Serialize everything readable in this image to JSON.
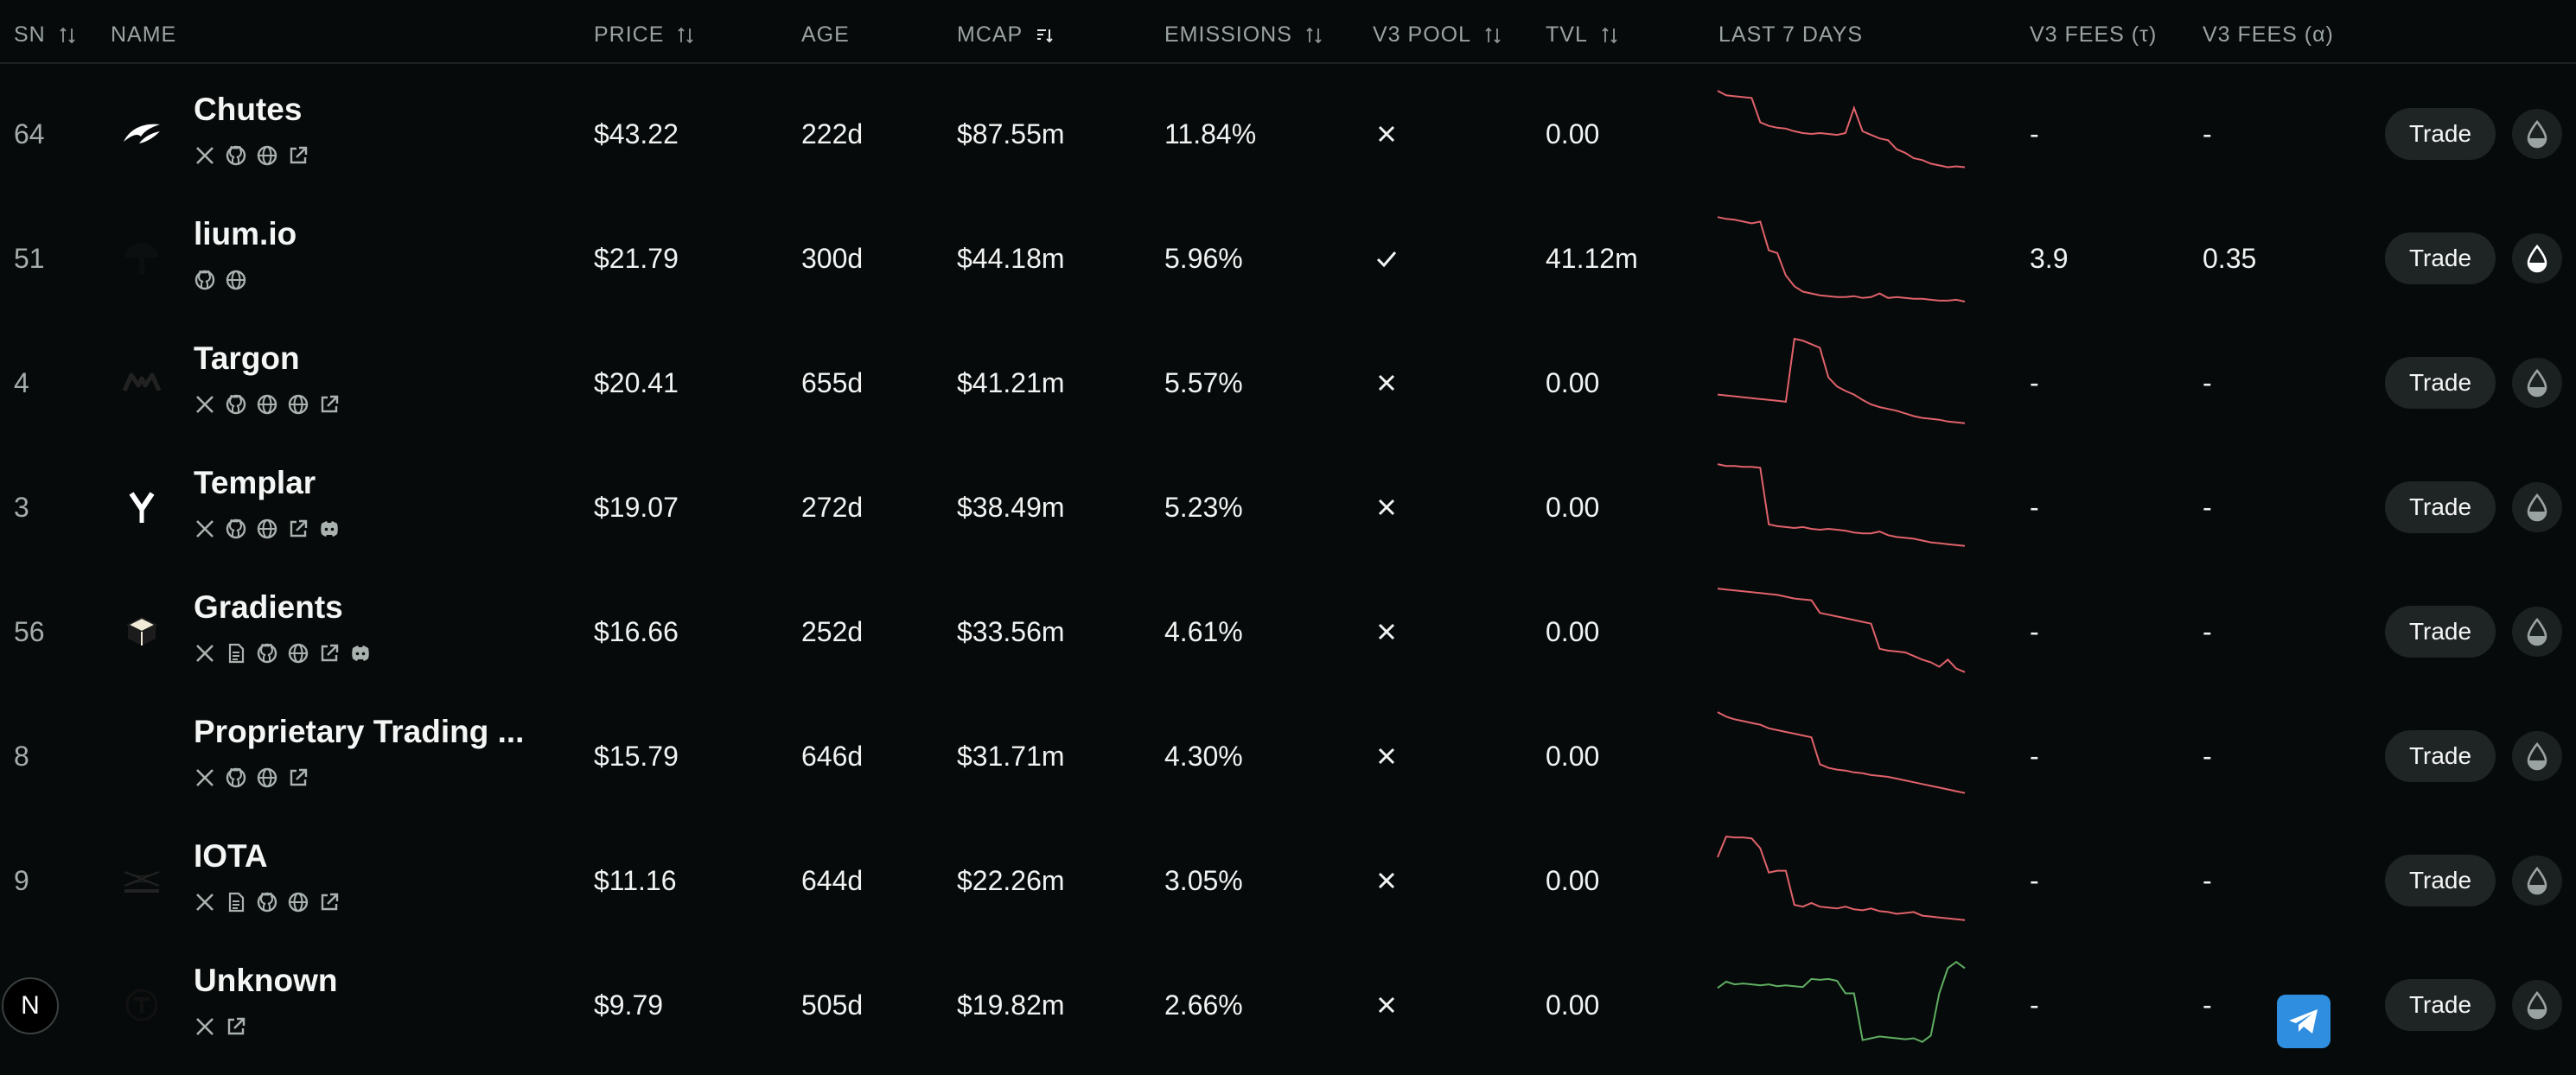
{
  "header": {
    "sn": "SN",
    "name": "NAME",
    "price": "PRICE",
    "age": "AGE",
    "mcap": "MCAP",
    "emissions": "EMISSIONS",
    "v3pool": "V3 POOL",
    "tvl": "TVL",
    "last7": "LAST 7 DAYS",
    "fees_tau": "V3 FEES (τ)",
    "fees_alpha": "V3 FEES (α)"
  },
  "trade_label": "Trade",
  "colors": {
    "down": "#e0626b",
    "up": "#5fae63",
    "accent": "#2f8ee0"
  },
  "rows": [
    {
      "sn": "64",
      "name": "Chutes",
      "price": "$43.22",
      "age": "222d",
      "mcap": "$87.55m",
      "emissions": "11.84%",
      "v3pool": false,
      "tvl": "0.00",
      "fees_tau": "-",
      "fees_alpha": "-",
      "links": [
        "x-icon",
        "github-icon",
        "globe-icon",
        "external-link-icon"
      ],
      "trend": "down",
      "spark": [
        0.97,
        0.92,
        0.91,
        0.9,
        0.89,
        0.62,
        0.58,
        0.56,
        0.55,
        0.52,
        0.5,
        0.49,
        0.5,
        0.49,
        0.48,
        0.5,
        0.78,
        0.52,
        0.48,
        0.44,
        0.42,
        0.32,
        0.28,
        0.22,
        0.2,
        0.16,
        0.14,
        0.12,
        0.13,
        0.12
      ]
    },
    {
      "sn": "51",
      "name": "lium.io",
      "price": "$21.79",
      "age": "300d",
      "mcap": "$44.18m",
      "emissions": "5.96%",
      "v3pool": true,
      "tvl": "41.12m",
      "fees_tau": "3.9",
      "fees_alpha": "0.35",
      "links": [
        "github-icon",
        "globe-icon"
      ],
      "trend": "down",
      "spark": [
        0.95,
        0.93,
        0.92,
        0.9,
        0.88,
        0.9,
        0.58,
        0.55,
        0.3,
        0.18,
        0.12,
        0.1,
        0.08,
        0.07,
        0.06,
        0.06,
        0.07,
        0.05,
        0.06,
        0.1,
        0.05,
        0.06,
        0.05,
        0.04,
        0.04,
        0.03,
        0.02,
        0.02,
        0.03,
        0.01
      ]
    },
    {
      "sn": "4",
      "name": "Targon",
      "price": "$20.41",
      "age": "655d",
      "mcap": "$41.21m",
      "emissions": "5.57%",
      "v3pool": false,
      "tvl": "0.00",
      "fees_tau": "-",
      "fees_alpha": "-",
      "links": [
        "x-icon",
        "github-icon",
        "globe-icon",
        "globe-icon",
        "external-link-icon"
      ],
      "trend": "down",
      "spark": [
        0.36,
        0.35,
        0.34,
        0.33,
        0.32,
        0.31,
        0.3,
        0.29,
        0.28,
        0.98,
        0.96,
        0.92,
        0.88,
        0.55,
        0.45,
        0.4,
        0.36,
        0.3,
        0.25,
        0.22,
        0.2,
        0.18,
        0.15,
        0.12,
        0.1,
        0.09,
        0.08,
        0.06,
        0.05,
        0.04
      ]
    },
    {
      "sn": "3",
      "name": "Templar",
      "price": "$19.07",
      "age": "272d",
      "mcap": "$38.49m",
      "emissions": "5.23%",
      "v3pool": false,
      "tvl": "0.00",
      "fees_tau": "-",
      "fees_alpha": "-",
      "links": [
        "x-icon",
        "github-icon",
        "globe-icon",
        "external-link-icon",
        "discord-icon"
      ],
      "trend": "down",
      "spark": [
        0.97,
        0.95,
        0.95,
        0.94,
        0.94,
        0.93,
        0.3,
        0.28,
        0.27,
        0.26,
        0.27,
        0.25,
        0.24,
        0.25,
        0.24,
        0.23,
        0.21,
        0.2,
        0.2,
        0.22,
        0.18,
        0.16,
        0.15,
        0.14,
        0.12,
        0.1,
        0.09,
        0.08,
        0.07,
        0.06
      ]
    },
    {
      "sn": "56",
      "name": "Gradients",
      "price": "$16.66",
      "age": "252d",
      "mcap": "$33.56m",
      "emissions": "4.61%",
      "v3pool": false,
      "tvl": "0.00",
      "fees_tau": "-",
      "fees_alpha": "-",
      "links": [
        "x-icon",
        "document-icon",
        "github-icon",
        "globe-icon",
        "external-link-icon",
        "discord-icon"
      ],
      "trend": "down",
      "spark": [
        0.97,
        0.96,
        0.95,
        0.94,
        0.93,
        0.92,
        0.91,
        0.9,
        0.88,
        0.86,
        0.85,
        0.84,
        0.7,
        0.68,
        0.66,
        0.64,
        0.62,
        0.6,
        0.58,
        0.3,
        0.28,
        0.27,
        0.26,
        0.22,
        0.18,
        0.15,
        0.1,
        0.18,
        0.08,
        0.04
      ]
    },
    {
      "sn": "8",
      "name": "Proprietary Trading ...",
      "price": "$15.79",
      "age": "646d",
      "mcap": "$31.71m",
      "emissions": "4.30%",
      "v3pool": false,
      "tvl": "0.00",
      "fees_tau": "-",
      "fees_alpha": "-",
      "links": [
        "x-icon",
        "github-icon",
        "globe-icon",
        "external-link-icon"
      ],
      "trend": "down",
      "spark": [
        0.98,
        0.93,
        0.9,
        0.88,
        0.86,
        0.84,
        0.8,
        0.78,
        0.76,
        0.74,
        0.72,
        0.7,
        0.4,
        0.36,
        0.34,
        0.33,
        0.31,
        0.3,
        0.28,
        0.27,
        0.26,
        0.24,
        0.22,
        0.2,
        0.18,
        0.16,
        0.14,
        0.12,
        0.1,
        0.08
      ]
    },
    {
      "sn": "9",
      "name": "IOTA",
      "price": "$11.16",
      "age": "644d",
      "mcap": "$22.26m",
      "emissions": "3.05%",
      "v3pool": false,
      "tvl": "0.00",
      "fees_tau": "-",
      "fees_alpha": "-",
      "links": [
        "x-icon",
        "document-icon",
        "github-icon",
        "globe-icon",
        "external-link-icon"
      ],
      "trend": "down",
      "spark": [
        0.75,
        0.98,
        0.97,
        0.97,
        0.96,
        0.85,
        0.58,
        0.6,
        0.6,
        0.22,
        0.2,
        0.24,
        0.2,
        0.19,
        0.18,
        0.2,
        0.17,
        0.16,
        0.18,
        0.15,
        0.14,
        0.12,
        0.13,
        0.14,
        0.1,
        0.09,
        0.08,
        0.07,
        0.06,
        0.05
      ]
    },
    {
      "sn": "",
      "name": "Unknown",
      "price": "$9.79",
      "age": "505d",
      "mcap": "$19.82m",
      "emissions": "2.66%",
      "v3pool": false,
      "tvl": "0.00",
      "fees_tau": "-",
      "fees_alpha": "-",
      "links": [
        "x-icon",
        "external-link-icon"
      ],
      "trend": "up",
      "spark": [
        0.68,
        0.75,
        0.72,
        0.73,
        0.72,
        0.71,
        0.72,
        0.7,
        0.71,
        0.7,
        0.69,
        0.78,
        0.77,
        0.78,
        0.76,
        0.62,
        0.62,
        0.1,
        0.12,
        0.14,
        0.13,
        0.12,
        0.11,
        0.12,
        0.08,
        0.15,
        0.62,
        0.9,
        0.97,
        0.9
      ]
    }
  ]
}
